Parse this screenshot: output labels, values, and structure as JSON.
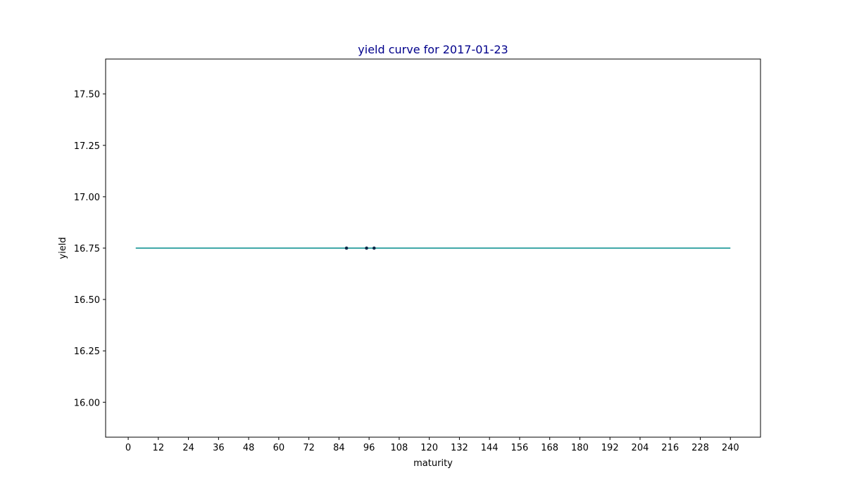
{
  "chart_data": {
    "type": "line",
    "title": "yield curve for 2017-01-23",
    "xlabel": "maturity",
    "ylabel": "yield",
    "xlim": [
      -9,
      252
    ],
    "ylim": [
      15.83,
      17.67
    ],
    "x_ticks": [
      0,
      12,
      24,
      36,
      48,
      60,
      72,
      84,
      96,
      108,
      120,
      132,
      144,
      156,
      168,
      180,
      192,
      204,
      216,
      228,
      240
    ],
    "y_ticks": [
      16.0,
      16.25,
      16.5,
      16.75,
      17.0,
      17.25,
      17.5
    ],
    "grid": false,
    "series": [
      {
        "kind": "line",
        "x": [
          3,
          240
        ],
        "y": [
          16.75,
          16.75
        ]
      },
      {
        "kind": "scatter",
        "x": [
          87,
          95,
          98
        ],
        "y": [
          16.75,
          16.75,
          16.75
        ]
      }
    ],
    "colors": {
      "title": "#00008b",
      "line": "#008b8b",
      "points": "#0b2a4a",
      "axes": "#000000"
    }
  }
}
